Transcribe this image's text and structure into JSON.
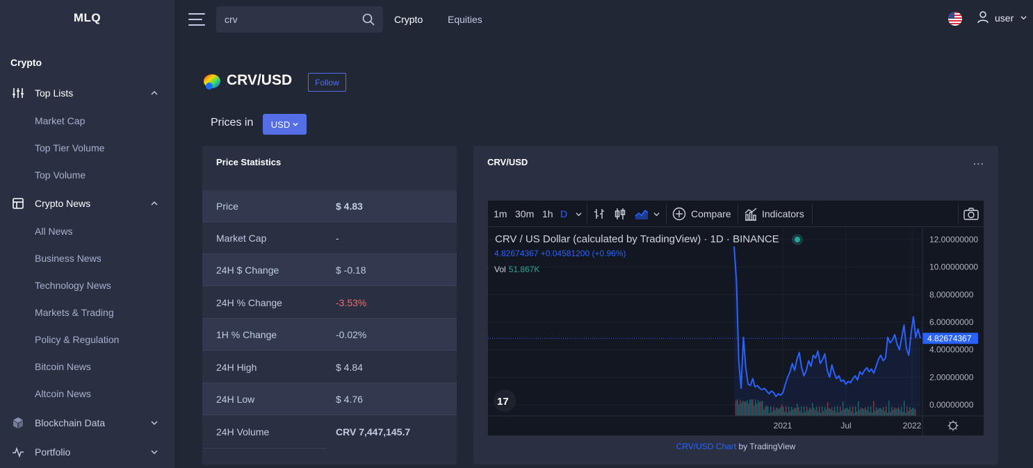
{
  "sidebar": {
    "brand": "MLQ",
    "section": "Crypto",
    "groups": [
      {
        "label": "Top Lists",
        "items": [
          "Market Cap",
          "Top Tier Volume",
          "Top Volume"
        ]
      },
      {
        "label": "Crypto News",
        "items": [
          "All News",
          "Business News",
          "Technology News",
          "Markets & Trading",
          "Policy & Regulation",
          "Bitcoin News",
          "Altcoin News"
        ]
      },
      {
        "label": "Blockchain Data",
        "items": []
      },
      {
        "label": "Portfolio",
        "items": []
      }
    ]
  },
  "topbar": {
    "search_value": "crv",
    "nav": [
      "Crypto",
      "Equities"
    ],
    "user": "user"
  },
  "page": {
    "pair": "CRV/USD",
    "follow_label": "Follow",
    "prices_in_label": "Prices in",
    "currency": "USD"
  },
  "stats": {
    "title": "Price Statistics",
    "rows": [
      {
        "label": "Price",
        "value": "$ 4.83"
      },
      {
        "label": "Market Cap",
        "value": "-"
      },
      {
        "label": "24H $ Change",
        "value": "$ -0.18"
      },
      {
        "label": "24H % Change",
        "value": "-3.53%"
      },
      {
        "label": "1H % Change",
        "value": "-0.02%"
      },
      {
        "label": "24H High",
        "value": "$ 4.84"
      },
      {
        "label": "24H Low",
        "value": "$ 4.76"
      },
      {
        "label": "24H Volume",
        "value": "CRV 7,447,145.7"
      }
    ]
  },
  "chart_card": {
    "title": "CRV/USD",
    "menu": "...",
    "toolbar": {
      "intervals": [
        "1m",
        "30m",
        "1h",
        "D"
      ],
      "active_interval": "D",
      "compare": "Compare",
      "indicators": "Indicators"
    },
    "legend": "CRV / US Dollar (calculated by TradingView) · 1D · BINANCE",
    "ohlc": "4.82674367  +0.04581200 (+0.96%)",
    "vol_label": "Vol",
    "vol_value": "51.867K",
    "last_price_label": "4.82674367",
    "credit_link": "CRV/USD Chart",
    "credit_suffix": " by TradingView",
    "colors": {
      "line": "#2962ff",
      "up": "#26a69a",
      "down": "#ef5350",
      "accent": "#556ee6",
      "negative": "#f46a6a"
    }
  },
  "chart_data": {
    "type": "line",
    "title": "",
    "x_ticks": [
      "2021",
      "Jul",
      "2022"
    ],
    "y_ticks": [
      "12.00000000",
      "10.00000000",
      "8.00000000",
      "6.00000000",
      "4.00000000",
      "2.00000000",
      "0.00000000"
    ],
    "ylim": [
      0,
      12
    ],
    "last_value": 4.82674367,
    "series": [
      {
        "values": [
          11.5,
          9.0,
          3.2,
          1.2,
          4.9,
          2.7,
          1.5,
          1.4,
          1.9,
          1.3,
          1.4,
          1.2,
          1.1,
          1.2,
          1.0,
          0.8,
          1.0,
          0.9,
          0.6,
          0.8,
          0.7,
          0.9,
          1.5,
          2.0,
          2.4,
          3.0,
          2.5,
          3.3,
          3.8,
          2.7,
          2.1,
          2.5,
          3.2,
          2.8,
          3.6,
          3.4,
          3.9,
          3.0,
          3.3,
          3.7,
          2.5,
          2.0,
          2.9,
          2.3,
          1.9,
          2.1,
          1.7,
          1.8,
          1.5,
          1.7,
          1.6,
          1.9,
          2.1,
          1.8,
          2.4,
          2.2,
          2.5,
          2.7,
          2.4,
          2.6,
          2.3,
          2.8,
          3.3,
          3.6,
          3.2,
          3.4,
          4.9,
          4.5,
          4.7,
          5.1,
          4.4,
          4.0,
          4.9,
          5.8,
          4.1,
          3.6,
          5.2,
          6.4,
          4.9,
          5.5,
          4.83
        ]
      }
    ]
  }
}
